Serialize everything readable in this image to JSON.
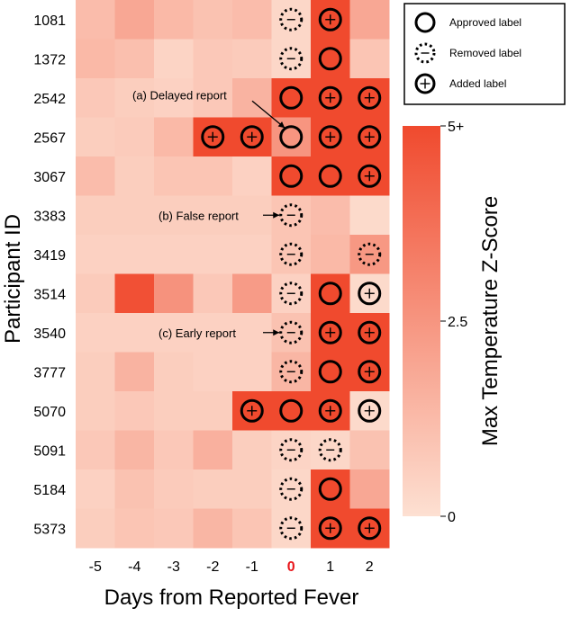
{
  "chart_data": {
    "type": "heatmap",
    "xlabel": "Days from Reported Fever",
    "ylabel": "Participant ID",
    "x": [
      "-5",
      "-4",
      "-3",
      "-2",
      "-1",
      "0",
      "1",
      "2"
    ],
    "x_highlight": "0",
    "x_highlight_color": "#e8161b",
    "participants": [
      "1081",
      "1372",
      "2542",
      "2567",
      "3067",
      "3383",
      "3419",
      "3514",
      "3540",
      "3777",
      "5070",
      "5091",
      "5184",
      "5373"
    ],
    "values": [
      [
        1.2,
        1.9,
        1.3,
        1.0,
        1.2,
        0.3,
        5.0,
        1.9
      ],
      [
        1.3,
        1.1,
        0.4,
        0.8,
        0.7,
        0.3,
        5.0,
        0.9
      ],
      [
        0.8,
        0.6,
        0.5,
        0.8,
        1.5,
        5.0,
        5.0,
        5.0
      ],
      [
        0.6,
        0.7,
        1.3,
        5.0,
        5.0,
        2.5,
        5.0,
        5.0
      ],
      [
        1.2,
        0.6,
        0.9,
        0.9,
        0.5,
        5.0,
        5.0,
        5.0
      ],
      [
        0.6,
        0.6,
        0.6,
        0.6,
        0.6,
        0.9,
        1.2,
        0.2
      ],
      [
        0.5,
        0.5,
        0.5,
        0.5,
        0.5,
        0.9,
        1.3,
        2.4
      ],
      [
        0.7,
        4.8,
        2.6,
        0.8,
        2.3,
        0.5,
        5.0,
        0.2
      ],
      [
        0.5,
        0.5,
        0.5,
        0.5,
        0.5,
        1.0,
        5.0,
        5.0
      ],
      [
        0.6,
        1.5,
        0.6,
        0.5,
        0.5,
        1.4,
        5.0,
        5.0
      ],
      [
        0.6,
        0.8,
        0.6,
        0.6,
        5.0,
        5.0,
        5.0,
        0.2
      ],
      [
        0.8,
        1.4,
        0.8,
        1.6,
        0.6,
        0.4,
        0.3,
        1.0
      ],
      [
        0.5,
        1.0,
        0.7,
        0.6,
        0.6,
        0.3,
        5.0,
        1.9
      ],
      [
        0.6,
        0.9,
        0.8,
        1.4,
        0.9,
        0.3,
        5.0,
        5.0
      ]
    ],
    "markers": [
      [
        "",
        "",
        "",
        "",
        "",
        "removed",
        "added",
        ""
      ],
      [
        "",
        "",
        "",
        "",
        "",
        "removed",
        "approved",
        ""
      ],
      [
        "",
        "",
        "",
        "",
        "",
        "approved",
        "added",
        "added"
      ],
      [
        "",
        "",
        "",
        "added",
        "added",
        "approved",
        "added",
        "added"
      ],
      [
        "",
        "",
        "",
        "",
        "",
        "approved",
        "approved",
        "added"
      ],
      [
        "",
        "",
        "",
        "",
        "",
        "removed",
        "",
        ""
      ],
      [
        "",
        "",
        "",
        "",
        "",
        "removed",
        "",
        "removed"
      ],
      [
        "",
        "",
        "",
        "",
        "",
        "removed",
        "approved",
        "added"
      ],
      [
        "",
        "",
        "",
        "",
        "",
        "removed",
        "added",
        "added"
      ],
      [
        "",
        "",
        "",
        "",
        "",
        "removed",
        "approved",
        "added"
      ],
      [
        "",
        "",
        "",
        "",
        "added",
        "approved",
        "added",
        "added"
      ],
      [
        "",
        "",
        "",
        "",
        "",
        "removed",
        "removed",
        ""
      ],
      [
        "",
        "",
        "",
        "",
        "",
        "removed",
        "approved",
        ""
      ],
      [
        "",
        "",
        "",
        "",
        "",
        "removed",
        "added",
        "added"
      ]
    ],
    "legend": [
      {
        "key": "approved",
        "label": "Approved label"
      },
      {
        "key": "removed",
        "label": "Removed label"
      },
      {
        "key": "added",
        "label": "Added label"
      }
    ],
    "legend_placement": "top-right",
    "annotations": [
      {
        "text": "(a) Delayed report",
        "row": "2567",
        "col": "0"
      },
      {
        "text": "(b) False report",
        "row": "3383",
        "col": "0"
      },
      {
        "text": "(c) Early report",
        "row": "3540",
        "col": "0"
      }
    ],
    "colorbar": {
      "label": "Max Temperature Z-Score",
      "min": 0,
      "max": 5,
      "ticks": [
        "0",
        "2.5",
        "5+"
      ],
      "color_low": "#fde0d2",
      "color_high": "#f04a2e"
    }
  }
}
